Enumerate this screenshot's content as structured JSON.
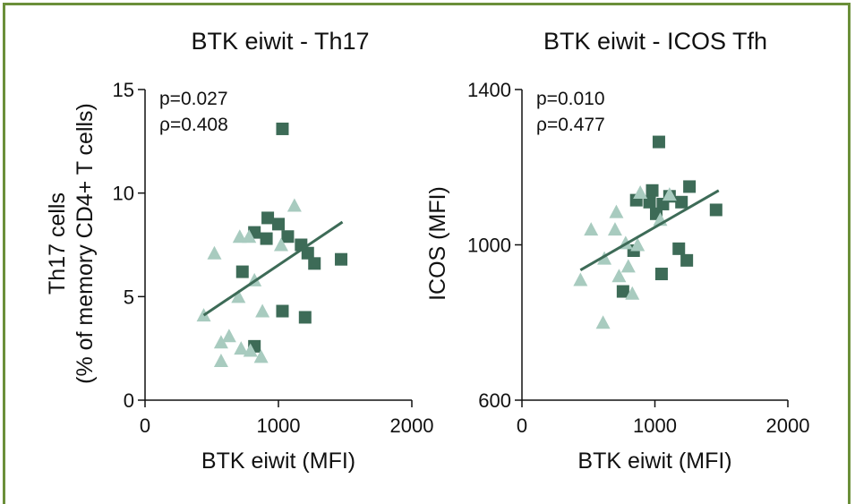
{
  "colors": {
    "frame": "#6b8f3a",
    "square_series": "#3d6b57",
    "triangle_series": "#a8cbbf",
    "regression": "#3d6b57",
    "axis": "#111111"
  },
  "chart_data": [
    {
      "type": "scatter",
      "title": "BTK eiwit - Th17",
      "xlabel": "BTK eiwit (MFI)",
      "ylabel": "Th17 cells",
      "ylabel_2": "(% of memory CD4+ T cells)",
      "xlim": [
        0,
        2000
      ],
      "ylim": [
        0,
        15
      ],
      "xticks": [
        0,
        1000,
        2000
      ],
      "yticks": [
        0,
        5,
        10,
        15
      ],
      "xtick_labels": [
        "0",
        "1000",
        "2000"
      ],
      "ytick_labels": [
        "0",
        "5",
        "10",
        "15"
      ],
      "stats": [
        "p=0.027",
        "ρ=0.408"
      ],
      "regression": {
        "x": [
          440,
          1480
        ],
        "y": [
          4.1,
          8.6
        ]
      },
      "series": [
        {
          "marker": "square",
          "points": [
            [
              1030,
              13.1
            ],
            [
              920,
              8.8
            ],
            [
              1000,
              8.5
            ],
            [
              820,
              8.1
            ],
            [
              1070,
              7.9
            ],
            [
              910,
              7.8
            ],
            [
              1170,
              7.5
            ],
            [
              1220,
              7.1
            ],
            [
              1270,
              6.6
            ],
            [
              1470,
              6.8
            ],
            [
              730,
              6.2
            ],
            [
              1030,
              4.3
            ],
            [
              1200,
              4.0
            ],
            [
              820,
              2.6
            ]
          ]
        },
        {
          "marker": "triangle",
          "points": [
            [
              1120,
              9.4
            ],
            [
              710,
              7.9
            ],
            [
              780,
              7.9
            ],
            [
              1020,
              7.5
            ],
            [
              520,
              7.1
            ],
            [
              820,
              5.8
            ],
            [
              700,
              5.0
            ],
            [
              440,
              4.1
            ],
            [
              880,
              4.3
            ],
            [
              630,
              3.1
            ],
            [
              570,
              2.8
            ],
            [
              720,
              2.5
            ],
            [
              790,
              2.4
            ],
            [
              870,
              2.1
            ],
            [
              570,
              1.9
            ]
          ]
        }
      ]
    },
    {
      "type": "scatter",
      "title": "BTK eiwit - ICOS Tfh",
      "xlabel": "BTK eiwit (MFI)",
      "ylabel": "ICOS (MFI)",
      "xlim": [
        0,
        2000
      ],
      "ylim": [
        600,
        1400
      ],
      "xticks": [
        0,
        1000,
        2000
      ],
      "yticks": [
        600,
        1000,
        1400
      ],
      "xtick_labels": [
        "0",
        "1000",
        "2000"
      ],
      "ytick_labels": [
        "600",
        "1000",
        "1400"
      ],
      "stats": [
        "p=0.010",
        "ρ=0.477"
      ],
      "regression": {
        "x": [
          440,
          1480
        ],
        "y": [
          935,
          1140
        ]
      },
      "series": [
        {
          "marker": "square",
          "points": [
            [
              1030,
              1265
            ],
            [
              1260,
              1150
            ],
            [
              980,
              1140
            ],
            [
              1110,
              1125
            ],
            [
              860,
              1115
            ],
            [
              960,
              1110
            ],
            [
              1060,
              1105
            ],
            [
              1200,
              1110
            ],
            [
              1460,
              1090
            ],
            [
              1010,
              1080
            ],
            [
              1180,
              990
            ],
            [
              840,
              985
            ],
            [
              1240,
              960
            ],
            [
              1050,
              925
            ],
            [
              760,
              880
            ]
          ]
        },
        {
          "marker": "triangle",
          "points": [
            [
              1110,
              1130
            ],
            [
              890,
              1135
            ],
            [
              710,
              1085
            ],
            [
              1040,
              1065
            ],
            [
              520,
              1040
            ],
            [
              700,
              1040
            ],
            [
              780,
              1005
            ],
            [
              870,
              1000
            ],
            [
              620,
              965
            ],
            [
              800,
              945
            ],
            [
              730,
              920
            ],
            [
              440,
              910
            ],
            [
              830,
              875
            ],
            [
              610,
              800
            ]
          ]
        }
      ]
    }
  ]
}
